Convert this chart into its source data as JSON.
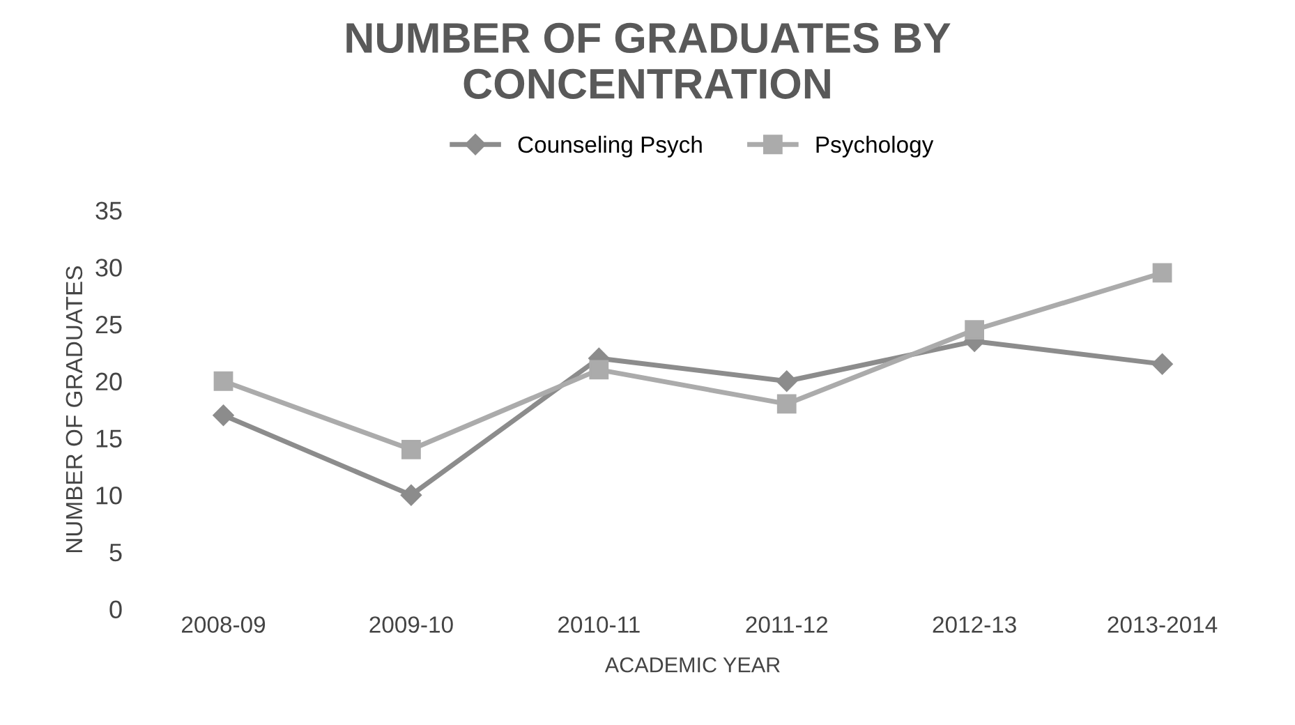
{
  "chart_data": {
    "type": "line",
    "title": "NUMBER OF GRADUATES BY\nCONCENTRATION",
    "xlabel": "ACADEMIC YEAR",
    "ylabel": "NUMBER OF GRADUATES",
    "categories": [
      "2008-09",
      "2009-10",
      "2010-11",
      "2011-12",
      "2012-13",
      "2013-2014"
    ],
    "series": [
      {
        "name": "Counseling Psych",
        "color": "#8c8c8c",
        "marker": "diamond",
        "values": [
          17,
          10,
          22,
          20,
          23.5,
          21.5
        ]
      },
      {
        "name": "Psychology",
        "color": "#ababab",
        "marker": "square",
        "values": [
          20,
          14,
          21,
          18,
          24.5,
          29.5
        ]
      }
    ],
    "ylim": [
      0,
      35
    ],
    "yticks": [
      0,
      5,
      10,
      15,
      20,
      25,
      30,
      35
    ],
    "legend": "top",
    "grid": false
  }
}
